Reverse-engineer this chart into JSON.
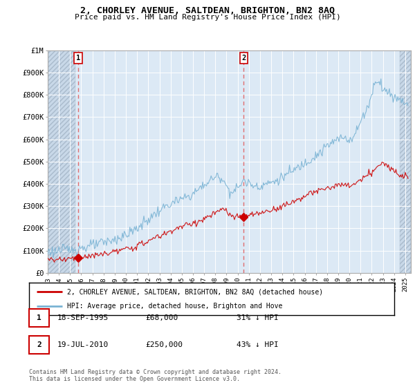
{
  "title": "2, CHORLEY AVENUE, SALTDEAN, BRIGHTON, BN2 8AQ",
  "subtitle": "Price paid vs. HM Land Registry's House Price Index (HPI)",
  "ylim": [
    0,
    1000000
  ],
  "yticks": [
    0,
    100000,
    200000,
    300000,
    400000,
    500000,
    600000,
    700000,
    800000,
    900000,
    1000000
  ],
  "ytick_labels": [
    "£0",
    "£100K",
    "£200K",
    "£300K",
    "£400K",
    "£500K",
    "£600K",
    "£700K",
    "£800K",
    "£900K",
    "£1M"
  ],
  "sale1_date": 1995.72,
  "sale1_price": 68000,
  "sale1_label": "1",
  "sale2_date": 2010.55,
  "sale2_price": 250000,
  "sale2_label": "2",
  "hpi_color": "#7ab3d4",
  "sale_color": "#cc0000",
  "dashed_color": "#e06060",
  "legend_entry1": "2, CHORLEY AVENUE, SALTDEAN, BRIGHTON, BN2 8AQ (detached house)",
  "legend_entry2": "HPI: Average price, detached house, Brighton and Hove",
  "table_row1": [
    "1",
    "18-SEP-1995",
    "£68,000",
    "31% ↓ HPI"
  ],
  "table_row2": [
    "2",
    "19-JUL-2010",
    "£250,000",
    "43% ↓ HPI"
  ],
  "footer": "Contains HM Land Registry data © Crown copyright and database right 2024.\nThis data is licensed under the Open Government Licence v3.0.",
  "xlim_start": 1993.0,
  "xlim_end": 2025.5,
  "bg_blue": "#dce9f5",
  "bg_hatch": "#dce9f5"
}
